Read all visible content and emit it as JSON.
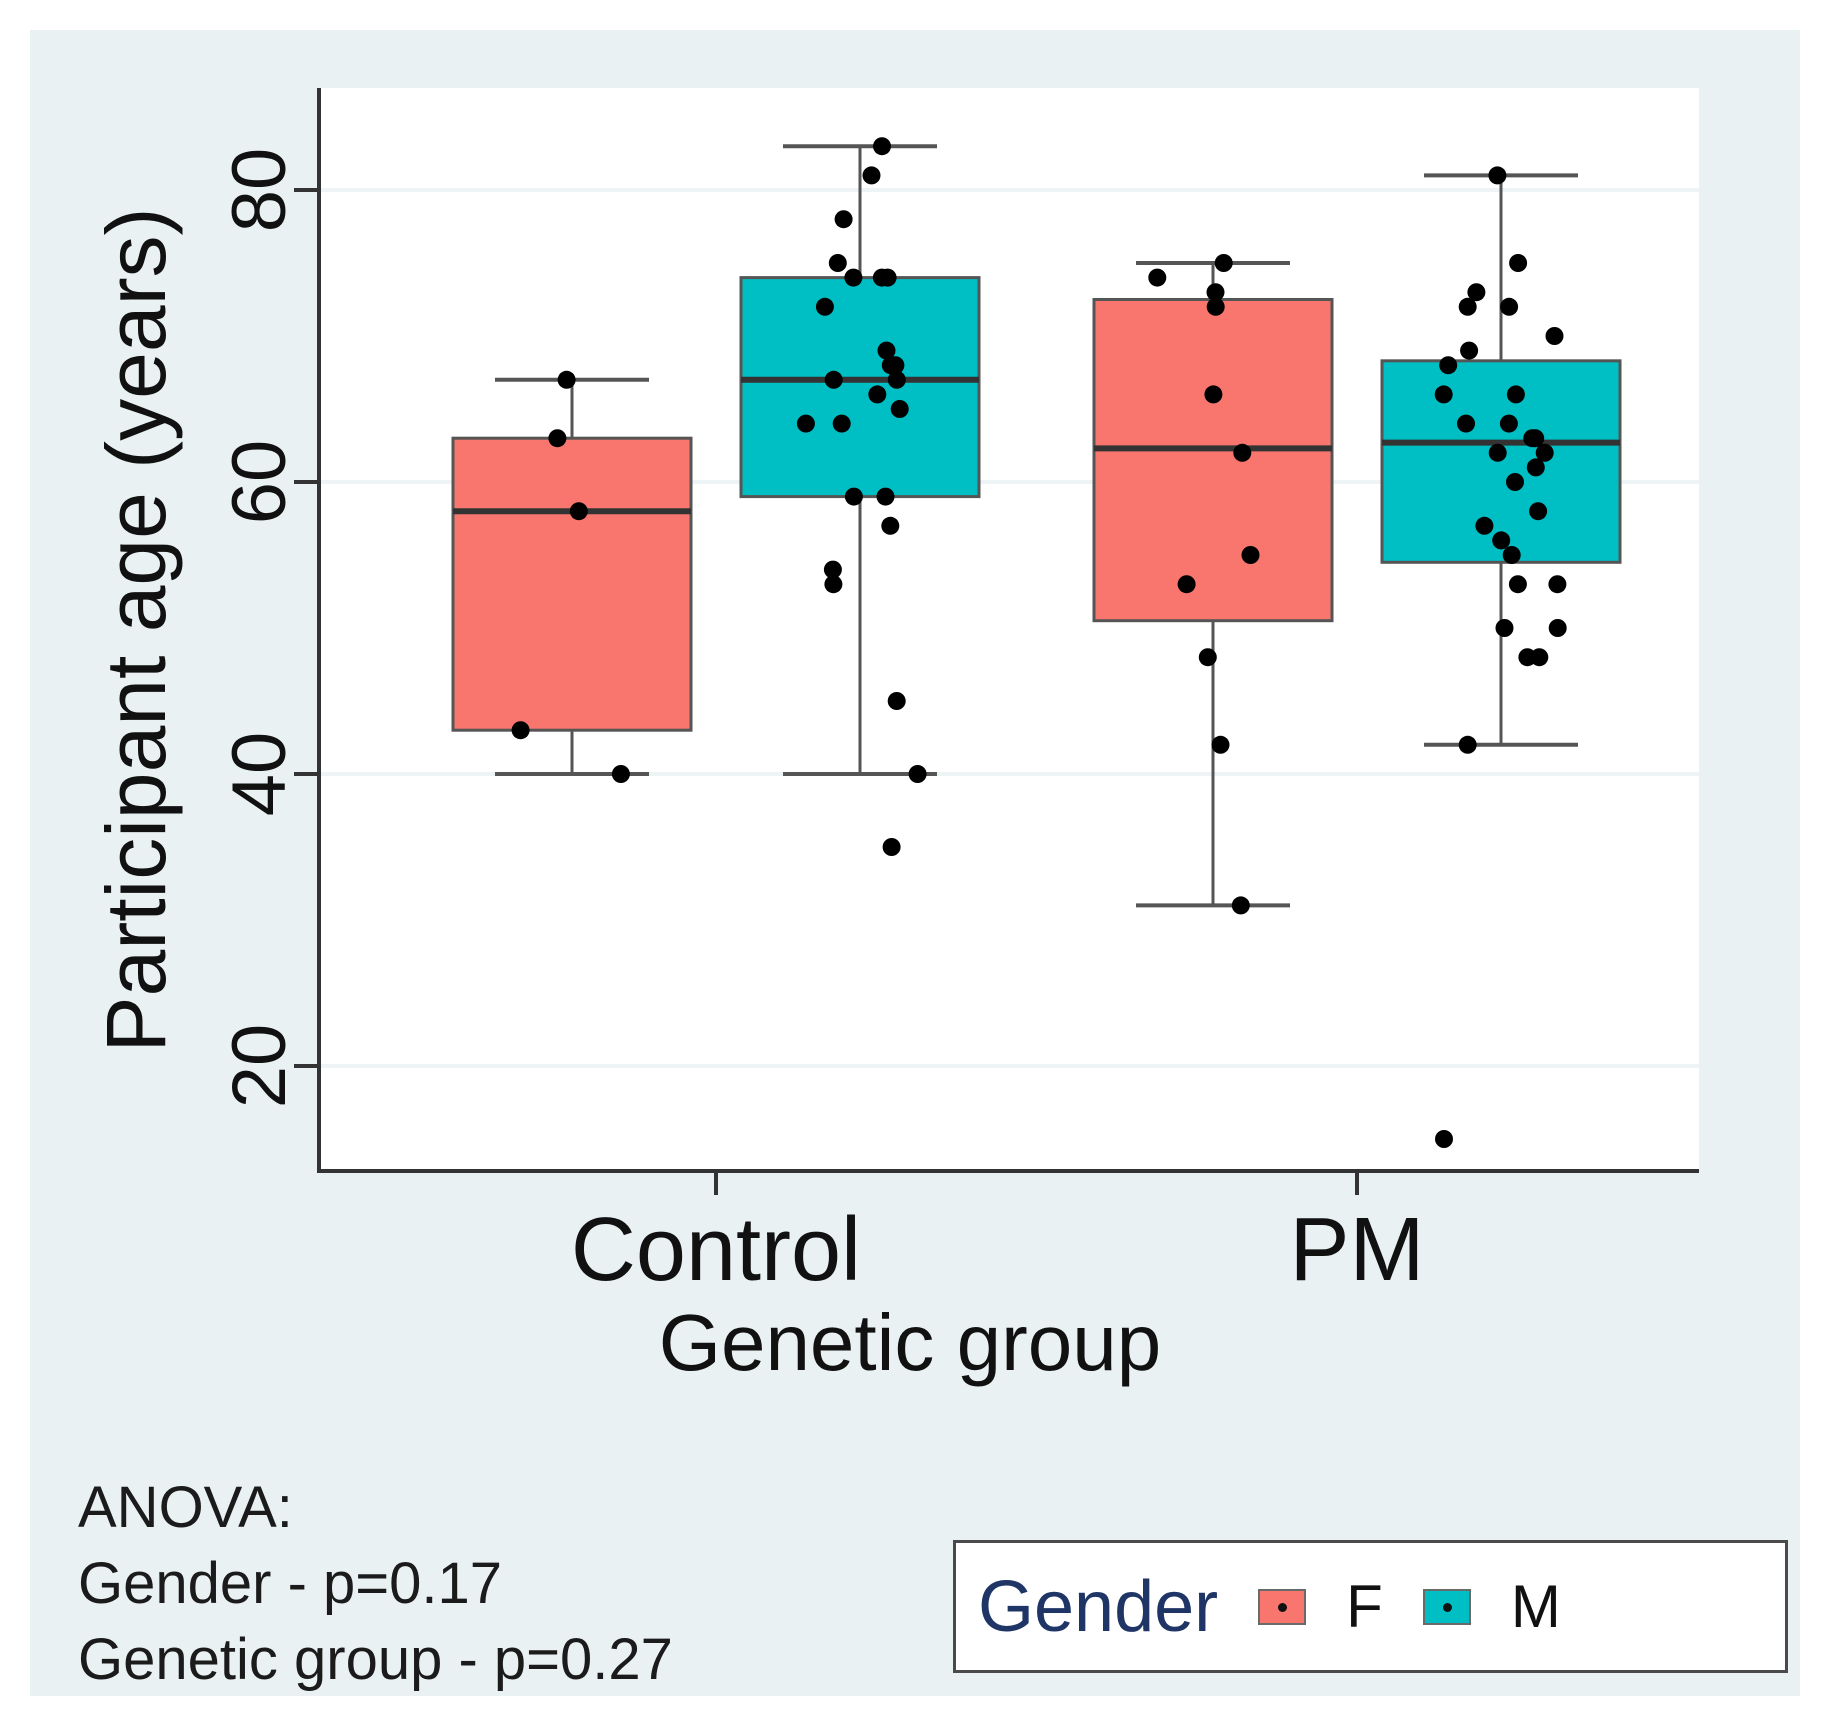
{
  "chart_data": {
    "type": "box",
    "title": "",
    "xlabel": "Genetic group",
    "ylabel": "Participant age (years)",
    "categories": [
      "Control",
      "PM"
    ],
    "yticks": [
      20,
      40,
      60,
      80
    ],
    "ylim": [
      12,
      87
    ],
    "legend": {
      "title": "Gender",
      "entries": [
        {
          "label": "F",
          "color": "#f8766d"
        },
        {
          "label": "M",
          "color": "#00bfc4"
        }
      ]
    },
    "series": [
      {
        "name": "F",
        "color": "#f8766d",
        "boxes": [
          {
            "category": "Control",
            "whisker_low": 40,
            "q1": 43,
            "median": 58,
            "q3": 63,
            "whisker_high": 67,
            "outliers": [],
            "points": [
              40,
              43,
              58,
              63,
              67
            ]
          },
          {
            "category": "PM",
            "whisker_low": 31,
            "q1": 50.5,
            "median": 62.3,
            "q3": 72.5,
            "whisker_high": 75,
            "outliers": [],
            "points": [
              31,
              42,
              48,
              53,
              55,
              62,
              66,
              72,
              73,
              74,
              75
            ]
          }
        ]
      },
      {
        "name": "M",
        "color": "#00bfc4",
        "boxes": [
          {
            "category": "Control",
            "whisker_low": 40,
            "q1": 59,
            "median": 67,
            "q3": 74,
            "whisker_high": 83,
            "outliers": [
              35
            ],
            "points": [
              35,
              40,
              45,
              53,
              54,
              57,
              59,
              59,
              64,
              64,
              65,
              66,
              67,
              67,
              68,
              68,
              69,
              72,
              74,
              74,
              74,
              75,
              78,
              81,
              83
            ]
          },
          {
            "category": "PM",
            "whisker_low": 42,
            "q1": 54.5,
            "median": 62.7,
            "q3": 68.3,
            "whisker_high": 81,
            "outliers": [
              15
            ],
            "points": [
              15,
              42,
              48,
              48,
              50,
              50,
              53,
              53,
              55,
              56,
              57,
              58,
              60,
              61,
              62,
              62,
              63,
              63,
              64,
              64,
              66,
              66,
              68,
              69,
              70,
              72,
              72,
              73,
              75,
              81
            ]
          }
        ]
      }
    ]
  },
  "anova": {
    "title": "ANOVA:",
    "gender_line": "Gender - p=0.17",
    "group_line": "Genetic group - p=0.27"
  }
}
